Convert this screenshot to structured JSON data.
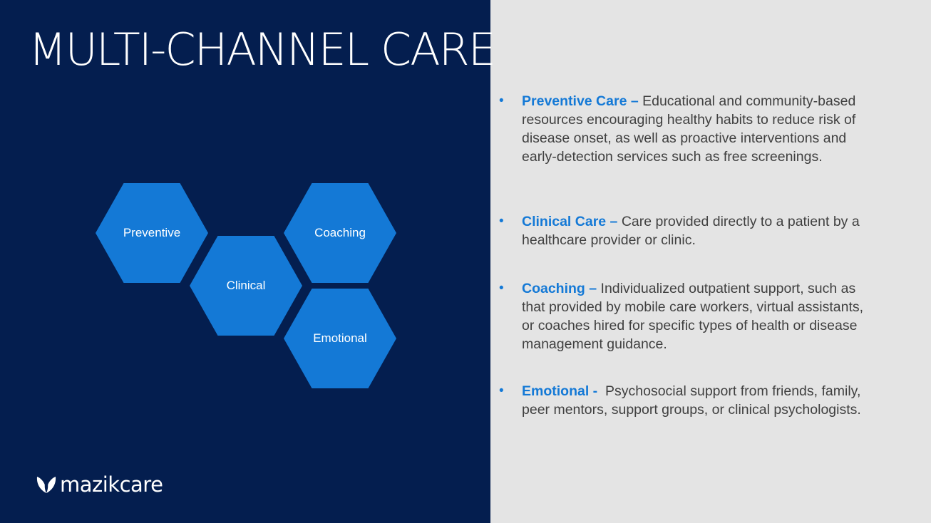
{
  "slide": {
    "title": "MULTI-CHANNEL CARE",
    "colors": {
      "left_bg": "#041e4f",
      "right_bg": "#e4e4e4",
      "accent": "#1479d6",
      "body_text": "#404040"
    }
  },
  "hexagons": [
    {
      "label": "Preventive"
    },
    {
      "label": "Clinical"
    },
    {
      "label": "Coaching"
    },
    {
      "label": "Emotional"
    }
  ],
  "bullets": [
    {
      "term": "Preventive Care –",
      "text": "Educational and community-based resources encouraging healthy habits to reduce risk of disease onset, as well as proactive interventions and early-detection services such as free screenings."
    },
    {
      "term": "Clinical Care –",
      "text": "Care provided directly to a patient by a healthcare provider or clinic."
    },
    {
      "term": "Coaching –",
      "text": "Individualized outpatient support, such as that provided by mobile care workers, virtual assistants, or coaches hired for specific types of health or disease management guidance."
    },
    {
      "term": "Emotional -",
      "text": "Psychosocial support from friends, family, peer mentors, support groups, or clinical psychologists."
    }
  ],
  "logo": {
    "text": "mazikcare",
    "icon": "leaf-icon"
  },
  "bullet_symbol": "•"
}
